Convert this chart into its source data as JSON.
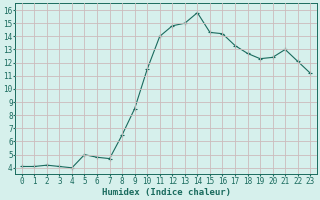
{
  "x": [
    0,
    1,
    2,
    3,
    4,
    5,
    6,
    7,
    8,
    9,
    10,
    11,
    12,
    13,
    14,
    15,
    16,
    17,
    18,
    19,
    20,
    21,
    22,
    23
  ],
  "y": [
    4.1,
    4.1,
    4.2,
    4.1,
    4.0,
    5.0,
    4.8,
    4.7,
    6.5,
    8.5,
    11.5,
    14.0,
    14.8,
    15.0,
    15.8,
    14.3,
    14.2,
    13.3,
    12.7,
    12.3,
    12.4,
    13.0,
    12.1,
    11.2
  ],
  "line_color": "#1a6b5e",
  "marker": "P",
  "marker_size": 2.5,
  "background_color": "#d6f0ec",
  "grid_color": "#ccbbbb",
  "xlabel": "Humidex (Indice chaleur)",
  "xlabel_fontsize": 6.5,
  "tick_fontsize": 5.5,
  "ylim": [
    3.5,
    16.5
  ],
  "xlim": [
    -0.5,
    23.5
  ],
  "yticks": [
    4,
    5,
    6,
    7,
    8,
    9,
    10,
    11,
    12,
    13,
    14,
    15,
    16
  ],
  "xticks": [
    0,
    1,
    2,
    3,
    4,
    5,
    6,
    7,
    8,
    9,
    10,
    11,
    12,
    13,
    14,
    15,
    16,
    17,
    18,
    19,
    20,
    21,
    22,
    23
  ],
  "figsize": [
    3.2,
    2.0
  ],
  "dpi": 100
}
